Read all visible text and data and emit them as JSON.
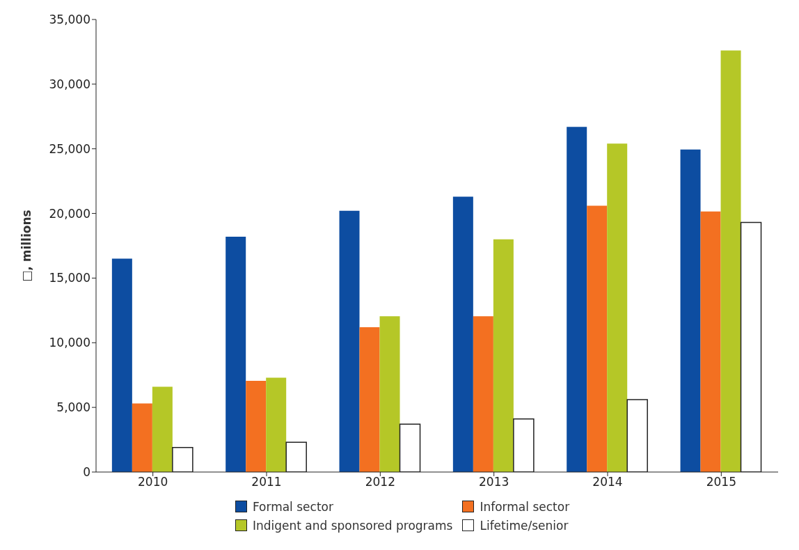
{
  "chart_data": {
    "type": "bar",
    "ylabel": "□, millions",
    "categories": [
      "2010",
      "2011",
      "2012",
      "2013",
      "2014",
      "2015"
    ],
    "series": [
      {
        "name": "Formal sector",
        "color": "#0d4da1",
        "values": [
          16500,
          18200,
          20200,
          21300,
          26700,
          24950
        ]
      },
      {
        "name": "Informal sector",
        "color": "#f37021",
        "values": [
          5300,
          7050,
          11200,
          12050,
          20600,
          20150
        ]
      },
      {
        "name": "Indigent and sponsored programs",
        "color": "#b5c727",
        "values": [
          6600,
          7300,
          12050,
          18000,
          25400,
          32600
        ]
      },
      {
        "name": "Lifetime/senior",
        "color": "#ffffff",
        "values": [
          1900,
          2300,
          3700,
          4100,
          5600,
          19300
        ]
      }
    ],
    "ylim": [
      0,
      35000
    ],
    "yticks": [
      0,
      {
        "value": 5000,
        "label": "5,000"
      },
      {
        "value": 10000,
        "label": "10,000"
      },
      {
        "value": 15000,
        "label": "15,000"
      },
      {
        "value": 20000,
        "label": "20,000"
      },
      {
        "value": 25000,
        "label": "25,000"
      },
      {
        "value": 30000,
        "label": "30,000"
      },
      {
        "value": 35000,
        "label": "35,000"
      }
    ],
    "grid": false,
    "legend": "bottom"
  }
}
